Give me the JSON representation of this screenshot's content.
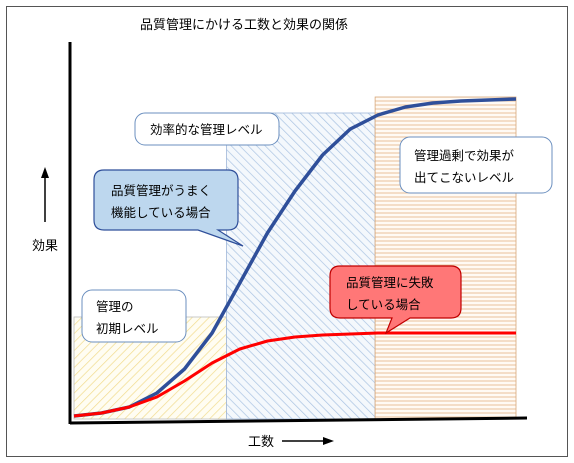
{
  "chart_data": {
    "type": "line",
    "title": "品質管理にかける工数と効果の関係",
    "xlabel": "工数",
    "ylabel": "効果",
    "series": [
      {
        "color": "#2f4f9a",
        "points": [
          [
            0,
            0.5
          ],
          [
            5,
            2
          ],
          [
            10,
            5
          ],
          [
            15,
            12
          ],
          [
            20,
            24
          ],
          [
            25,
            42
          ],
          [
            30,
            67
          ],
          [
            35,
            92
          ],
          [
            40,
            113
          ],
          [
            45,
            131
          ],
          [
            50,
            144
          ],
          [
            55,
            151
          ],
          [
            60,
            155
          ],
          [
            65,
            157
          ],
          [
            70,
            158
          ],
          [
            75,
            158.5
          ],
          [
            80,
            159
          ]
        ]
      },
      {
        "color": "#ff0000",
        "points": [
          [
            0,
            0.5
          ],
          [
            5,
            2
          ],
          [
            10,
            5
          ],
          [
            15,
            10
          ],
          [
            20,
            18
          ],
          [
            25,
            27
          ],
          [
            30,
            34
          ],
          [
            35,
            38
          ],
          [
            40,
            40
          ],
          [
            45,
            41
          ],
          [
            50,
            41.5
          ],
          [
            55,
            42
          ],
          [
            60,
            42
          ],
          [
            65,
            42
          ],
          [
            70,
            42
          ],
          [
            75,
            42
          ],
          [
            80,
            42
          ]
        ]
      }
    ],
    "xlim": [
      0,
      80
    ],
    "ylim": [
      0,
      162
    ]
  },
  "regions": [
    {
      "x_from": 0,
      "x_to": 27.6,
      "top": 50,
      "pattern": "hatch-yellow"
    },
    {
      "x_from": 27.6,
      "x_to": 54.5,
      "top": 152,
      "pattern": "hatch-blue"
    },
    {
      "x_from": 54.5,
      "x_to": 80,
      "top": 160,
      "pattern": "hatch-orange"
    }
  ],
  "callouts": {
    "initial": {
      "line1": "管理の",
      "line2": "初期レベル"
    },
    "efficient": {
      "line1": "効率的な管理レベル"
    },
    "excess": {
      "line1": "管理過剰で効果が",
      "line2": "出てこないレベル"
    },
    "working": {
      "line1": "品質管理がうまく",
      "line2": "機能している場合"
    },
    "failing": {
      "line1": "品質管理に失敗",
      "line2": "している場合"
    }
  },
  "colors": {
    "blue_line": "#2f4f9a",
    "red_line": "#ff0000",
    "callout_blue": "#bdd7ee",
    "callout_red": "#ff7777"
  }
}
